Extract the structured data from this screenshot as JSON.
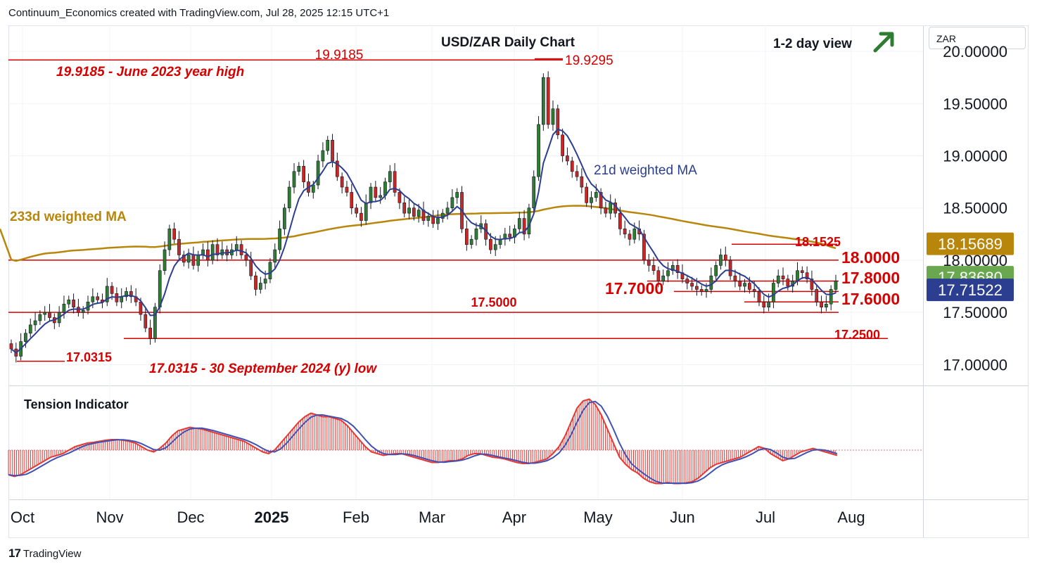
{
  "header": {
    "text": "Continuum_Economics created with TradingView.com, Jul 28, 2025 12:15 UTC+1"
  },
  "footer": {
    "brand": "TradingView",
    "logo_glyph": "17"
  },
  "currency_box": {
    "label": "ZAR"
  },
  "chart_data": {
    "type": "candlestick",
    "title": "USD/ZAR Daily Chart",
    "view_note": "1-2 day view",
    "view_arrow": "up-right-arrow",
    "ylim": [
      16.8,
      20.25
    ],
    "yticks": [
      {
        "value": 17.0,
        "label": "17.00000"
      },
      {
        "value": 17.5,
        "label": "17.50000"
      },
      {
        "value": 18.0,
        "label": "18.00000"
      },
      {
        "value": 18.5,
        "label": "18.50000"
      },
      {
        "value": 19.0,
        "label": "19.00000"
      },
      {
        "value": 19.5,
        "label": "19.50000"
      },
      {
        "value": 20.0,
        "label": "20.00000"
      }
    ],
    "xticks": [
      {
        "label": "Oct",
        "bold": false
      },
      {
        "label": "Nov",
        "bold": false
      },
      {
        "label": "Dec",
        "bold": false
      },
      {
        "label": "2025",
        "bold": true
      },
      {
        "label": "Feb",
        "bold": false
      },
      {
        "label": "Mar",
        "bold": false
      },
      {
        "label": "Apr",
        "bold": false
      },
      {
        "label": "May",
        "bold": false
      },
      {
        "label": "Jun",
        "bold": false
      },
      {
        "label": "Jul",
        "bold": false
      },
      {
        "label": "Aug",
        "bold": false
      }
    ],
    "price_badges": [
      {
        "value": 18.15689,
        "label": "18.15689",
        "color": "#b8860b"
      },
      {
        "value": 17.8368,
        "label": "17.83680",
        "color": "#6aa84f"
      },
      {
        "value": 17.71522,
        "label": "17.71522",
        "color": "#2c3e8f"
      }
    ],
    "levels": [
      {
        "label": "19.9185",
        "value": 19.9185
      },
      {
        "label": "19.9295",
        "value": 19.9295
      },
      {
        "label": "18.1525",
        "value": 18.1525
      },
      {
        "label": "18.0000",
        "value": 18.0
      },
      {
        "label": "17.8000",
        "value": 17.8
      },
      {
        "label": "17.7000",
        "value": 17.7
      },
      {
        "label": "17.6000",
        "value": 17.6
      },
      {
        "label": "17.5000",
        "value": 17.5
      },
      {
        "label": "17.2500",
        "value": 17.25
      },
      {
        "label": "17.0315",
        "value": 17.0315
      }
    ],
    "annotations": [
      "19.9185 - June 2023 year high",
      "17.0315 - 30 September 2024 (y) low"
    ],
    "ma_labels": [
      "21d weighted MA",
      "233d weighted MA"
    ],
    "indicator_title": "Tension Indicator",
    "colors": {
      "up": "#2e7d32",
      "down": "#c62828",
      "ma21": "#2c3e8f",
      "ma233": "#b8860b",
      "level": "#d50000",
      "ti_hist": "#e53935",
      "ti_fast": "#e53935",
      "ti_slow": "#3f51b5"
    },
    "closes": [
      17.15,
      17.08,
      17.22,
      17.3,
      17.38,
      17.42,
      17.48,
      17.5,
      17.45,
      17.4,
      17.5,
      17.58,
      17.62,
      17.55,
      17.5,
      17.52,
      17.6,
      17.65,
      17.62,
      17.6,
      17.75,
      17.68,
      17.6,
      17.65,
      17.7,
      17.65,
      17.6,
      17.48,
      17.35,
      17.25,
      17.55,
      17.9,
      18.1,
      18.3,
      18.2,
      18.05,
      17.98,
      18.05,
      17.95,
      18.05,
      18.1,
      18.0,
      18.15,
      18.05,
      18.1,
      18.05,
      18.1,
      18.15,
      18.05,
      18.0,
      17.85,
      17.72,
      17.78,
      17.82,
      17.98,
      18.1,
      18.3,
      18.5,
      18.7,
      18.85,
      18.9,
      18.75,
      18.65,
      18.72,
      18.95,
      19.05,
      19.15,
      18.95,
      18.8,
      18.7,
      18.65,
      18.5,
      18.45,
      18.38,
      18.55,
      18.7,
      18.6,
      18.62,
      18.75,
      18.85,
      18.65,
      18.55,
      18.45,
      18.5,
      18.42,
      18.48,
      18.38,
      18.42,
      18.35,
      18.4,
      18.45,
      18.5,
      18.6,
      18.65,
      18.3,
      18.15,
      18.2,
      18.3,
      18.35,
      18.2,
      18.1,
      18.15,
      18.2,
      18.25,
      18.22,
      18.3,
      18.4,
      18.25,
      18.5,
      18.8,
      19.3,
      19.75,
      19.3,
      19.45,
      19.2,
      19.0,
      18.95,
      18.85,
      18.8,
      18.7,
      18.55,
      18.6,
      18.65,
      18.5,
      18.45,
      18.55,
      18.45,
      18.3,
      18.25,
      18.2,
      18.3,
      18.25,
      18.0,
      17.95,
      17.9,
      17.8,
      17.85,
      17.9,
      17.95,
      17.88,
      17.82,
      17.78,
      17.75,
      17.72,
      17.7,
      17.72,
      17.85,
      17.95,
      18.05,
      18.0,
      17.85,
      17.8,
      17.75,
      17.78,
      17.72,
      17.7,
      17.6,
      17.55,
      17.6,
      17.78,
      17.85,
      17.82,
      17.75,
      17.8,
      17.9,
      17.88,
      17.82,
      17.72,
      17.6,
      17.55,
      17.58,
      17.72,
      17.8
    ],
    "tension": [
      -0.7,
      -0.75,
      -0.7,
      -0.6,
      -0.5,
      -0.4,
      -0.3,
      -0.2,
      -0.15,
      -0.1,
      0.0,
      0.1,
      0.15,
      0.2,
      0.22,
      0.25,
      0.28,
      0.3,
      0.3,
      0.28,
      0.25,
      0.2,
      0.1,
      0.0,
      -0.05,
      0.05,
      0.2,
      0.4,
      0.55,
      0.6,
      0.65,
      0.62,
      0.6,
      0.55,
      0.5,
      0.45,
      0.4,
      0.35,
      0.3,
      0.25,
      0.15,
      0.05,
      -0.05,
      -0.1,
      0.0,
      0.2,
      0.4,
      0.6,
      0.8,
      0.95,
      1.05,
      1.0,
      0.95,
      0.95,
      0.9,
      0.85,
      0.7,
      0.5,
      0.3,
      0.1,
      -0.05,
      -0.1,
      -0.15,
      -0.12,
      -0.1,
      -0.1,
      -0.15,
      -0.2,
      -0.25,
      -0.3,
      -0.35,
      -0.35,
      -0.33,
      -0.3,
      -0.3,
      -0.25,
      -0.15,
      -0.1,
      -0.1,
      -0.15,
      -0.2,
      -0.22,
      -0.25,
      -0.3,
      -0.35,
      -0.38,
      -0.38,
      -0.35,
      -0.3,
      -0.25,
      -0.1,
      0.1,
      0.4,
      0.8,
      1.2,
      1.4,
      1.45,
      1.3,
      1.0,
      0.6,
      0.2,
      -0.2,
      -0.4,
      -0.55,
      -0.65,
      -0.8,
      -0.9,
      -0.95,
      -0.95,
      -0.92,
      -0.95,
      -0.95,
      -0.93,
      -0.9,
      -0.8,
      -0.65,
      -0.5,
      -0.4,
      -0.35,
      -0.3,
      -0.25,
      -0.2,
      -0.1,
      0.0,
      0.1,
      0.05,
      -0.1,
      -0.2,
      -0.3,
      -0.25,
      -0.15,
      -0.05,
      0.0,
      0.05,
      0.0,
      -0.05,
      -0.1,
      -0.15
    ]
  }
}
